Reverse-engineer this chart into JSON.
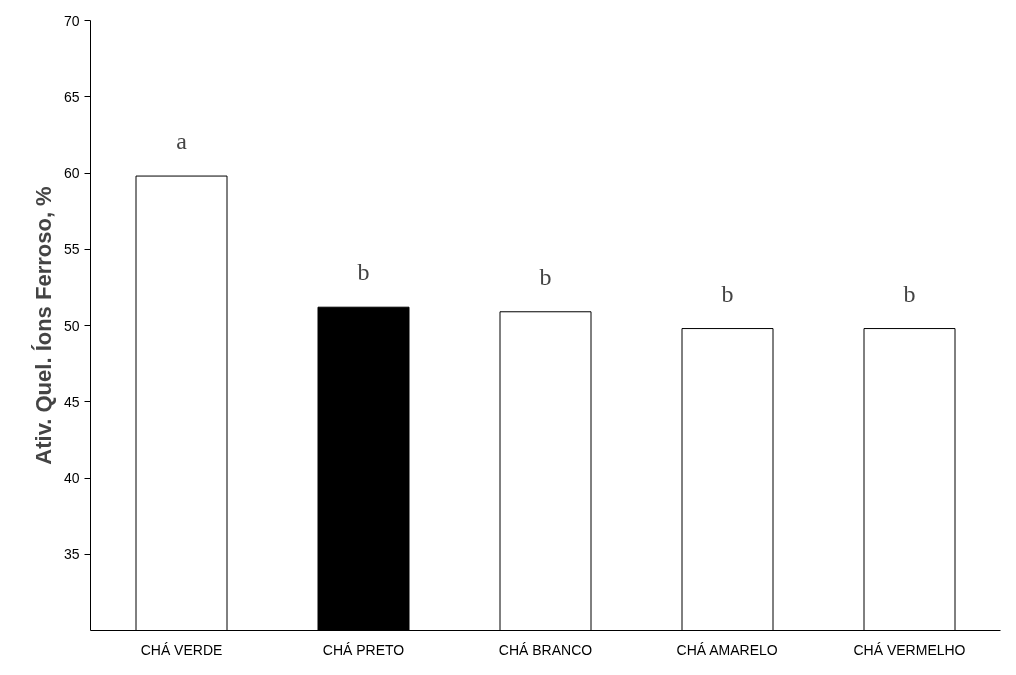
{
  "chart_data": {
    "type": "bar",
    "ylabel": "Ativ. Quel. Íons Ferroso, %",
    "categories": [
      "CHÁ VERDE",
      "CHÁ PRETO",
      "CHÁ BRANCO",
      "CHÁ AMARELO",
      "CHÁ VERMELHO"
    ],
    "values": [
      59.8,
      51.2,
      50.9,
      49.8,
      49.8
    ],
    "colors": [
      "#ffffff",
      "#000000",
      "#ffffff",
      "#ffffff",
      "#ffffff"
    ],
    "ylim": [
      30,
      70
    ],
    "yticks": [
      35,
      40,
      45,
      50,
      55,
      60,
      65,
      70
    ],
    "grid": false,
    "annotations": [
      "a",
      "b",
      "b",
      "b",
      "b"
    ]
  }
}
